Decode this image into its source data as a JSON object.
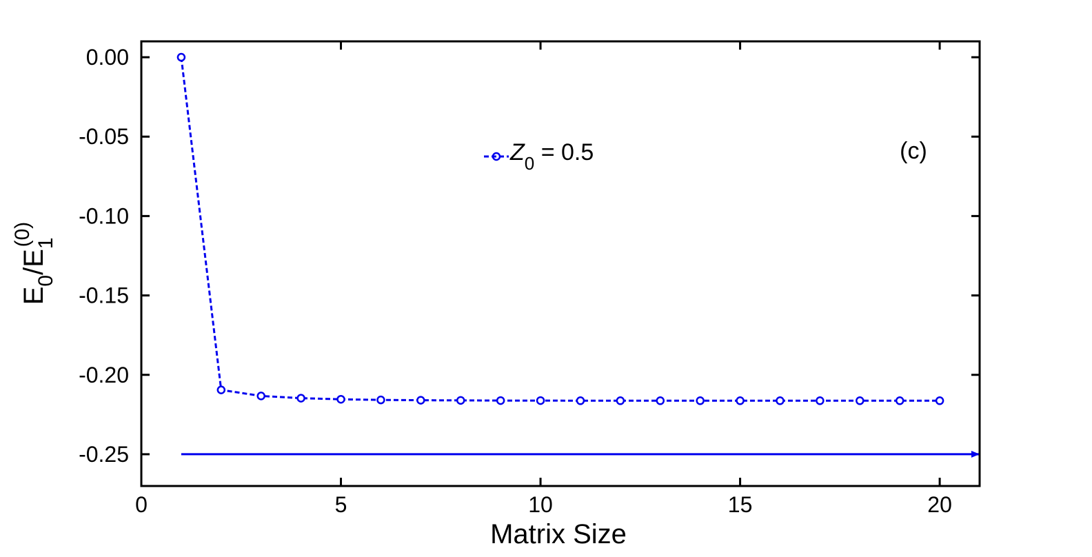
{
  "chart_data": {
    "type": "line",
    "xlabel": "Matrix Size",
    "ylabel": {
      "main": "E",
      "sub1": "0",
      "slash": "/E",
      "sub2": "1",
      "sup": "(0)"
    },
    "xlim": [
      0,
      21
    ],
    "ylim": [
      -0.27,
      0.01
    ],
    "xticks": [
      0,
      5,
      10,
      15,
      20
    ],
    "xtick_labels": [
      "0",
      "5",
      "10",
      "15",
      "20"
    ],
    "yticks": [
      0.0,
      -0.05,
      -0.1,
      -0.15,
      -0.2,
      -0.25
    ],
    "ytick_labels": [
      "0.00",
      "-0.05",
      "-0.10",
      "-0.15",
      "-0.20",
      "-0.25"
    ],
    "annotation": "(c)",
    "legend": {
      "position": "top-center",
      "symbol": "Z",
      "sub": "0",
      "text": " = 0.5"
    },
    "series": [
      {
        "name": "Z0 = 0.5",
        "color": "#0000ee",
        "style": "dashed-circle-markers",
        "x": [
          1,
          2,
          3,
          4,
          5,
          6,
          7,
          8,
          9,
          10,
          11,
          12,
          13,
          14,
          15,
          16,
          17,
          18,
          19,
          20
        ],
        "y": [
          0.0,
          -0.2095,
          -0.2133,
          -0.2147,
          -0.2154,
          -0.2158,
          -0.216,
          -0.2161,
          -0.2162,
          -0.2162,
          -0.2163,
          -0.2163,
          -0.2163,
          -0.2163,
          -0.2163,
          -0.2163,
          -0.2163,
          -0.2163,
          -0.2163,
          -0.2163
        ]
      }
    ],
    "reference_line": {
      "color": "#0000ee",
      "x": [
        1,
        21
      ],
      "y": -0.25,
      "arrow": true
    }
  }
}
